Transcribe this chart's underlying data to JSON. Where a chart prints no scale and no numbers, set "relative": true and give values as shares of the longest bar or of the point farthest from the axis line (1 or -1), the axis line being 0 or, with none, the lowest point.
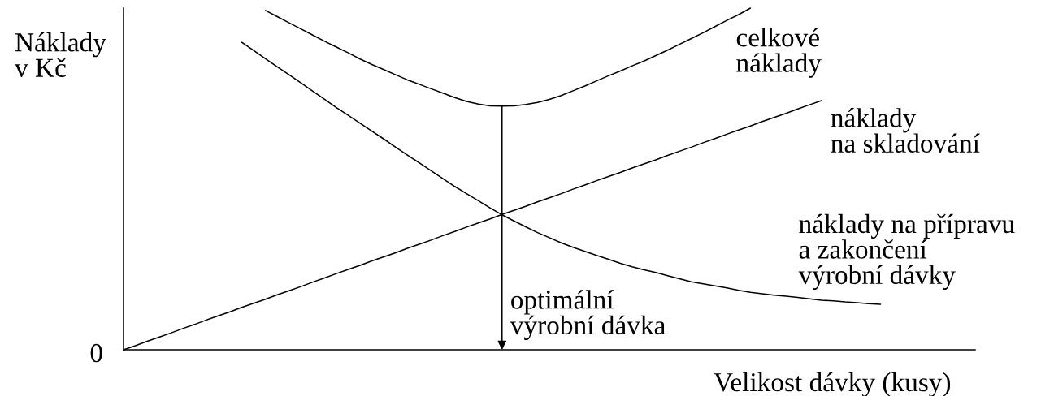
{
  "chart_data": {
    "type": "line",
    "relative": true,
    "ylabel": "Náklady\nv Kč",
    "xlabel": "Velikost dávky (kusy)",
    "annotations": [
      "0",
      "optimální\nvýrobní dávka"
    ],
    "categories": [
      null,
      null,
      null,
      null,
      null,
      null,
      null,
      null,
      null,
      null,
      null,
      null,
      null,
      null,
      null,
      null,
      null,
      null,
      null,
      null,
      null,
      null,
      null,
      null,
      null,
      null,
      null,
      null,
      null,
      null,
      null,
      null,
      null,
      null,
      null,
      null,
      null,
      null,
      null,
      null,
      null,
      null,
      null,
      null,
      null,
      null,
      null,
      null,
      null,
      null,
      null,
      null,
      null,
      null,
      null,
      null,
      null,
      null,
      null,
      null,
      null,
      null,
      null,
      null,
      null,
      null,
      null,
      null,
      null,
      null,
      null,
      null,
      null
    ],
    "series": [
      {
        "name": "celkové\nnáklady",
        "color": "#000000",
        "values": [
          null,
          null,
          null,
          null,
          null,
          null,
          null,
          null,
          null,
          null,
          null,
          null,
          0.993,
          0.975,
          0.957,
          0.939,
          0.921,
          0.903,
          0.886,
          0.869,
          0.851,
          0.835,
          0.82,
          0.805,
          0.79,
          0.777,
          0.764,
          0.751,
          0.738,
          0.727,
          0.719,
          0.714,
          0.713,
          0.714,
          0.718,
          0.724,
          0.733,
          0.744,
          0.758,
          0.772,
          0.787,
          0.802,
          0.816,
          0.831,
          0.845,
          0.861,
          0.877,
          0.894,
          0.911,
          0.928,
          0.946,
          0.964,
          0.981,
          1.0,
          null,
          null,
          null,
          null,
          null,
          null,
          null,
          null,
          null,
          null,
          null,
          null,
          null,
          null,
          null,
          null,
          null,
          null,
          null
        ]
      },
      {
        "name": "náklady\nna skladování",
        "color": "#000000",
        "values": [
          0,
          0.012,
          0.025,
          0.037,
          0.049,
          0.062,
          0.074,
          0.087,
          0.099,
          0.111,
          0.124,
          0.136,
          0.148,
          0.161,
          0.173,
          0.185,
          0.198,
          0.21,
          0.223,
          0.235,
          0.247,
          0.26,
          0.272,
          0.284,
          0.297,
          0.309,
          0.321,
          0.334,
          0.346,
          0.359,
          0.371,
          0.383,
          0.396,
          0.408,
          0.42,
          0.433,
          0.445,
          0.457,
          0.47,
          0.482,
          0.495,
          0.507,
          0.519,
          0.532,
          0.544,
          0.556,
          0.569,
          0.581,
          0.593,
          0.606,
          0.618,
          0.631,
          0.643,
          0.655,
          0.668,
          0.68,
          0.692,
          0.705,
          0.717,
          0.729,
          null,
          null,
          null,
          null,
          null,
          null,
          null,
          null,
          null,
          null,
          null,
          null,
          null
        ]
      },
      {
        "name": "náklady na přípravu\na zakončení\nvýrobní dávky",
        "color": "#000000",
        "values": [
          null,
          null,
          null,
          null,
          null,
          null,
          null,
          null,
          null,
          null,
          0.9,
          0.876,
          0.852,
          0.828,
          0.805,
          0.781,
          0.757,
          0.733,
          0.709,
          0.686,
          0.663,
          0.64,
          0.617,
          0.593,
          0.57,
          0.547,
          0.524,
          0.501,
          0.478,
          0.457,
          0.436,
          0.415,
          0.395,
          0.377,
          0.36,
          0.343,
          0.328,
          0.313,
          0.3,
          0.288,
          0.276,
          0.265,
          0.253,
          0.243,
          0.234,
          0.226,
          0.217,
          0.208,
          0.199,
          0.193,
          0.187,
          0.181,
          0.174,
          0.168,
          0.164,
          0.16,
          0.157,
          0.153,
          0.149,
          0.145,
          0.143,
          0.14,
          0.138,
          0.135,
          0.133,
          null,
          null,
          null,
          null,
          null,
          null,
          null,
          null
        ]
      }
    ]
  }
}
